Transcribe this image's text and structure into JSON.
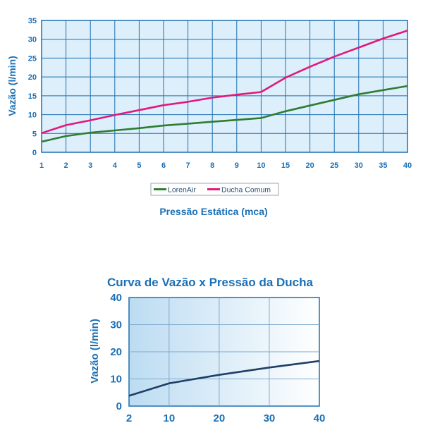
{
  "chart_data": [
    {
      "type": "line",
      "title": "",
      "xlabel": "Pressão Estática (mca)",
      "ylabel": "Vazão (l/min)",
      "categories": [
        "1",
        "2",
        "3",
        "4",
        "5",
        "6",
        "7",
        "8",
        "9",
        "10",
        "15",
        "20",
        "25",
        "30",
        "35",
        "40"
      ],
      "ylim": [
        0,
        35
      ],
      "yticks": [
        0,
        5,
        10,
        15,
        20,
        25,
        30,
        35
      ],
      "grid": true,
      "legend_position": "bottom-center",
      "series": [
        {
          "name": "LorenAir",
          "color": "#2e7d32",
          "values": [
            2.8,
            4.3,
            5.2,
            5.8,
            6.4,
            7.1,
            7.6,
            8.1,
            8.6,
            9.1,
            10.9,
            12.4,
            13.9,
            15.4,
            16.5,
            17.6
          ]
        },
        {
          "name": "Ducha Comum",
          "color": "#e0197d",
          "values": [
            5.1,
            7.2,
            8.5,
            9.9,
            11.2,
            12.5,
            13.4,
            14.5,
            15.3,
            16.0,
            19.8,
            22.7,
            25.4,
            27.8,
            30.2,
            32.3
          ]
        }
      ]
    },
    {
      "type": "line",
      "title": "Curva de Vazão x Pressão da Ducha",
      "xlabel": "",
      "ylabel": "Vazão (l/min)",
      "x": [
        2,
        10,
        20,
        30,
        40
      ],
      "xlim": [
        2,
        40
      ],
      "ylim": [
        0,
        40
      ],
      "yticks": [
        0,
        10,
        20,
        30,
        40
      ],
      "grid": true,
      "series": [
        {
          "color": "#1f3f66",
          "values": [
            3.8,
            8.4,
            11.5,
            14.2,
            16.6
          ]
        }
      ]
    }
  ]
}
